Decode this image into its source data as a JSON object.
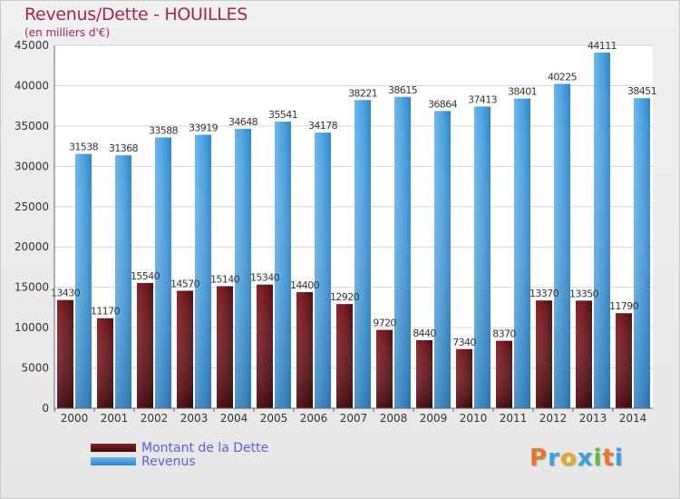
{
  "title": "Revenus/Dette - HOUILLES",
  "subtitle": "(en milliers d'€)",
  "legend": {
    "debt_label": "Montant de la Dette",
    "revenue_label": "Revenus"
  },
  "logo": {
    "text": "Proxiti"
  },
  "colors": {
    "debt": "#6e1a1f",
    "revenue": "#4aa0e0",
    "title": "#a3235a",
    "legend_text": "#5b5fe0"
  },
  "chart_data": {
    "type": "bar",
    "categories": [
      "2000",
      "2001",
      "2002",
      "2003",
      "2004",
      "2005",
      "2006",
      "2007",
      "2008",
      "2009",
      "2010",
      "2011",
      "2012",
      "2013",
      "2014"
    ],
    "series": [
      {
        "name": "Montant de la Dette",
        "values": [
          13430,
          11170,
          15540,
          14570,
          15140,
          15340,
          14400,
          12920,
          9720,
          8440,
          7340,
          8370,
          13370,
          13350,
          11790
        ],
        "labels": [
          "13430",
          "11170",
          "15540",
          "14570",
          "15140",
          "15340",
          "14400",
          "12920",
          "9720",
          "8440",
          "7340",
          "8370",
          "13370",
          "13350",
          "11790"
        ]
      },
      {
        "name": "Revenus",
        "values": [
          31538,
          31368,
          33588,
          33919,
          34648,
          35541,
          34178,
          38221,
          38615,
          36864,
          37413,
          38401,
          40225,
          44111,
          38451
        ],
        "labels": [
          "31538",
          "31368",
          "33588",
          "33919",
          "34648",
          "35541",
          "34178",
          "38221",
          "38615",
          "36864",
          "37413",
          "38401",
          "40225",
          "44111",
          "38451"
        ]
      }
    ],
    "yticks": [
      "0",
      "5000",
      "10000",
      "15000",
      "20000",
      "25000",
      "30000",
      "35000",
      "40000",
      "45000"
    ],
    "ylim": [
      0,
      45000
    ],
    "grid": true,
    "legend_position": "bottom-left"
  }
}
